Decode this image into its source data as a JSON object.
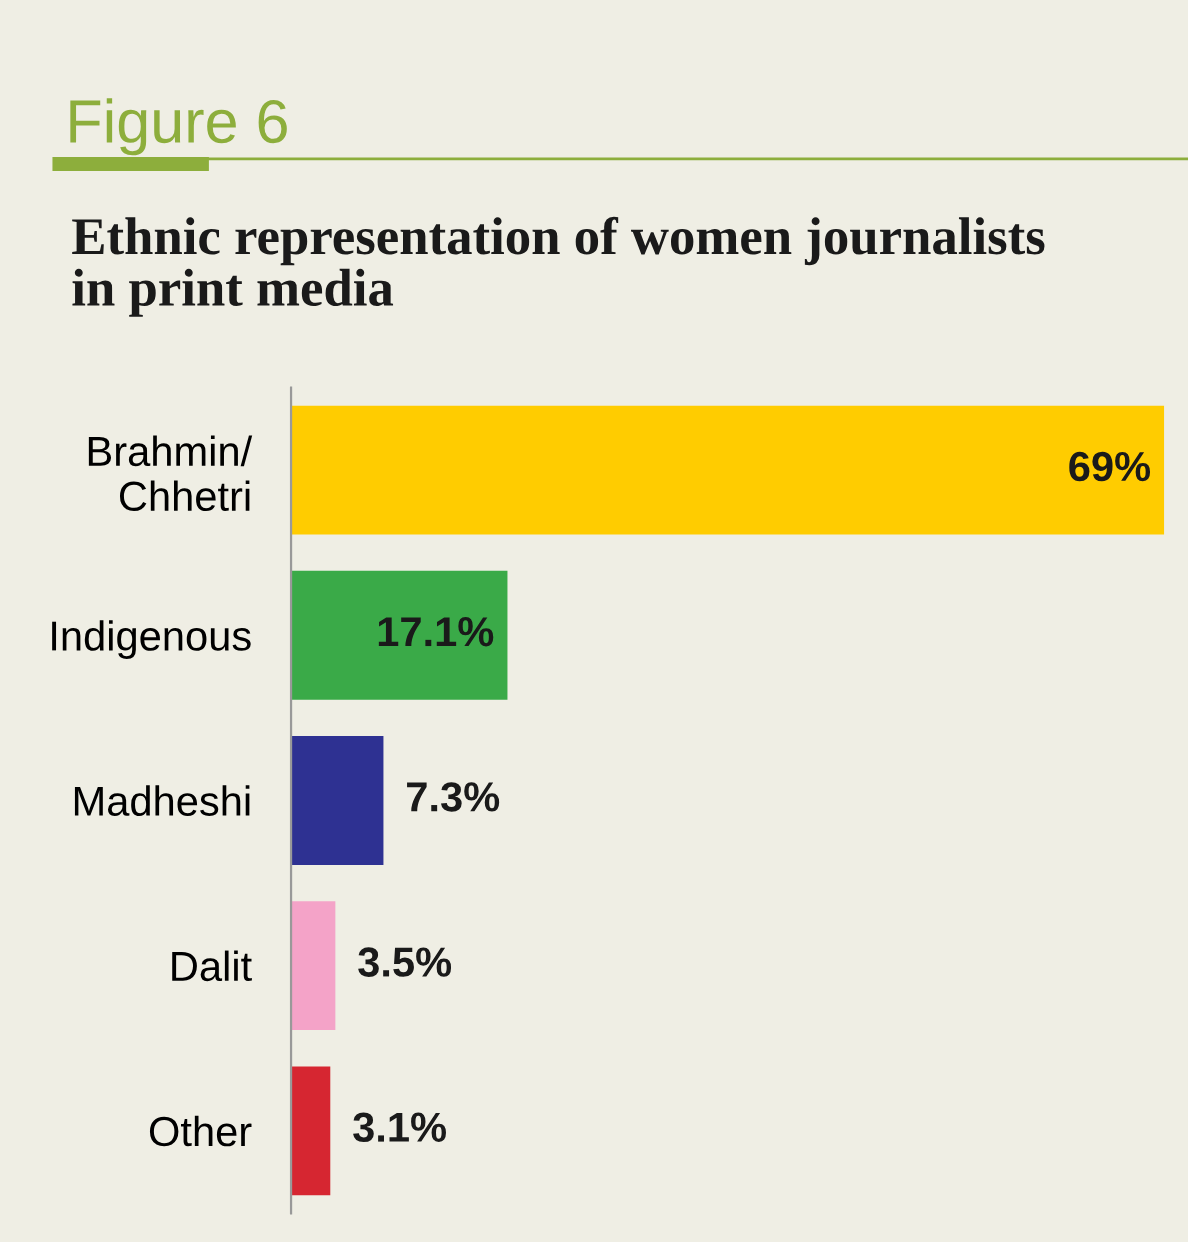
{
  "chart_data": {
    "type": "bar",
    "orientation": "horizontal",
    "title": "Ethnic representation of women journalists\nin print media",
    "annotations": [
      "Figure 6"
    ],
    "categories": [
      "Brahmin/\nChhetri",
      "Indigenous",
      "Madheshi",
      "Dalit",
      "Other"
    ],
    "values": [
      69,
      17.1,
      7.3,
      3.5,
      3.1
    ],
    "value_labels": [
      "69%",
      "17.1%",
      "7.3%",
      "3.5%",
      "3.1%"
    ],
    "colors": [
      "#ffcc00",
      "#3aaa48",
      "#2e3192",
      "#f4a3c8",
      "#d62631"
    ],
    "grid": false,
    "legend": false
  }
}
